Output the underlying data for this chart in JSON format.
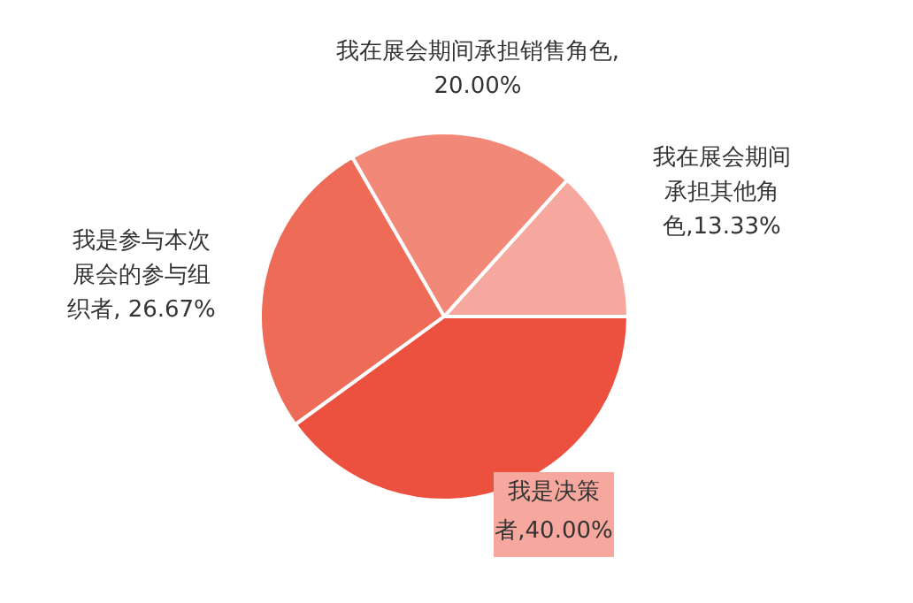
{
  "chart_data": {
    "type": "pie",
    "categories": [
      "我在展会期间承担其他角色",
      "我在展会期间承担销售角色",
      "我是参与本次展会的参与组织者",
      "我是决策者"
    ],
    "values": [
      13.33,
      20,
      26.67,
      40
    ],
    "colors": [
      "#f6a89e",
      "#f28878",
      "#ee6b58",
      "#ec5140"
    ],
    "value_labels": [
      ",13.33%",
      ",20.00%",
      ", 26.67%",
      ",40.00%"
    ]
  }
}
